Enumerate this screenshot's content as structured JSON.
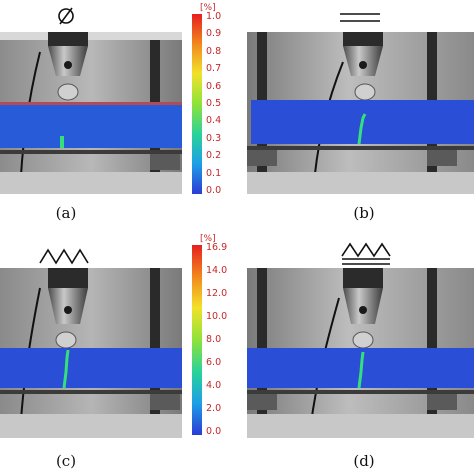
{
  "panels": [
    {
      "id": "a",
      "caption": "(a)",
      "symbol": "Ø"
    },
    {
      "id": "b",
      "caption": "(b)",
      "symbol": "double-line"
    },
    {
      "id": "c",
      "caption": "(c)",
      "symbol": "zigzag"
    },
    {
      "id": "d",
      "caption": "(d)",
      "symbol": "zigzag-double-line"
    }
  ],
  "colorbar_top": {
    "unit": "[%]",
    "ticks": [
      "1.0",
      "0.9",
      "0.8",
      "0.7",
      "0.6",
      "0.5",
      "0.4",
      "0.3",
      "0.2",
      "0.1",
      "0.0"
    ]
  },
  "colorbar_bottom": {
    "unit": "[%]",
    "ticks": [
      "16.9",
      "14.0",
      "12.0",
      "10.0",
      "8.0",
      "6.0",
      "4.0",
      "2.0",
      "0.0"
    ]
  },
  "colors": {
    "beam_blue": "#2a4fd6",
    "crack_green": "#35e07a",
    "colormap": [
      "#2b3bd6",
      "#1ea0e6",
      "#29d29a",
      "#8ee23a",
      "#f2e12a",
      "#f28a1e",
      "#e52020"
    ]
  }
}
